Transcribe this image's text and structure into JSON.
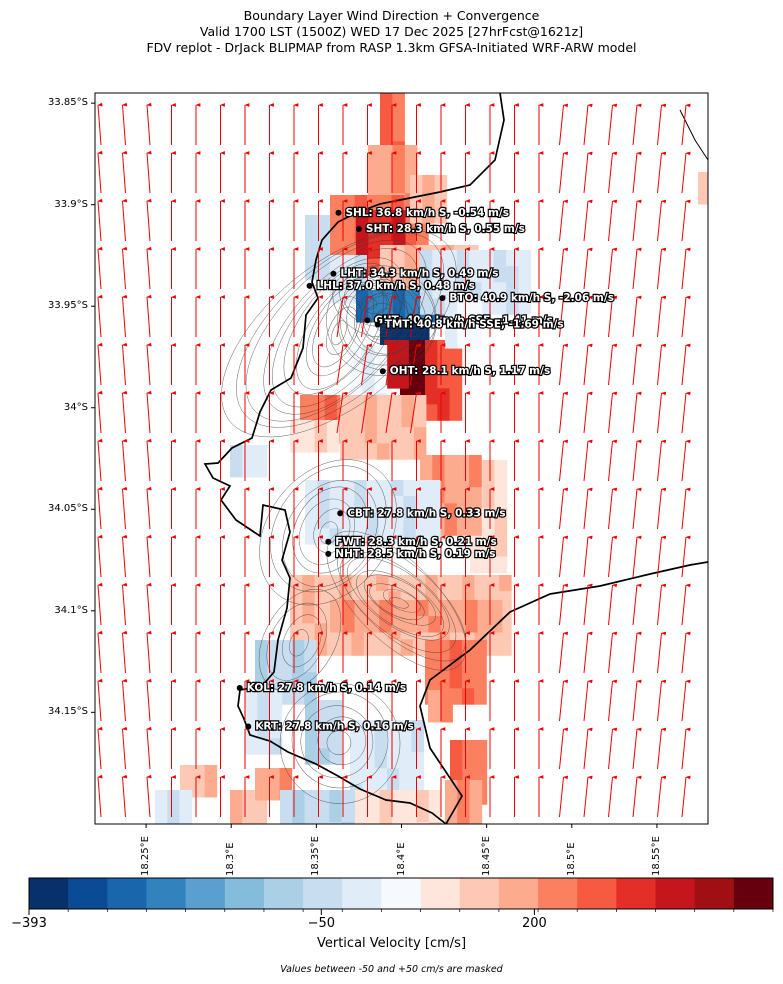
{
  "title": {
    "line1": "Boundary Layer Wind Direction + Convergence",
    "line2": "Valid 1700 LST (1500Z) WED 17 Dec 2025 [27hrFcst@1621z]",
    "line3": "FDV replot - DrJack BLIPMAP from RASP 1.3km GFSA-Initiated WRF-ARW model"
  },
  "axes": {
    "lat_ticks": [
      {
        "value": -33.85,
        "label": "33.85°S"
      },
      {
        "value": -33.9,
        "label": "33.9°S"
      },
      {
        "value": -33.95,
        "label": "33.95°S"
      },
      {
        "value": -34.0,
        "label": "34°S"
      },
      {
        "value": -34.05,
        "label": "34.05°S"
      },
      {
        "value": -34.1,
        "label": "34.1°S"
      },
      {
        "value": -34.15,
        "label": "34.15°S"
      }
    ],
    "lon_ticks": [
      {
        "value": 18.25,
        "label": "18.25°E"
      },
      {
        "value": 18.3,
        "label": "18.3°E"
      },
      {
        "value": 18.35,
        "label": "18.35°E"
      },
      {
        "value": 18.4,
        "label": "18.4°E"
      },
      {
        "value": 18.45,
        "label": "18.45°E"
      },
      {
        "value": 18.5,
        "label": "18.5°E"
      },
      {
        "value": 18.55,
        "label": "18.55°E"
      }
    ],
    "lon_range": [
      18.22,
      18.58
    ],
    "lat_range": [
      -34.205,
      -33.845
    ]
  },
  "stations": [
    {
      "code": "SHL",
      "label": "SHL: 36.8 km/h S, -0.54 m/s",
      "lon": 18.363,
      "lat": -33.904
    },
    {
      "code": "SHT",
      "label": "SHT: 28.3 km/h S, 0.55 m/s",
      "lon": 18.375,
      "lat": -33.912
    },
    {
      "code": "LHT",
      "label": "LHT: 34.3 km/h S, 0.49 m/s",
      "lon": 18.36,
      "lat": -33.934
    },
    {
      "code": "LHL",
      "label": "LHL: 37.0 km/h S, 0.48 m/s",
      "lon": 18.346,
      "lat": -33.94
    },
    {
      "code": "BTO",
      "label": "BTO: 40.9 km/h S, -2.06 m/s",
      "lon": 18.424,
      "lat": -33.946
    },
    {
      "code": "GUT",
      "label": "GUT: 40.0 km/h SSE, -1.41 m/s",
      "lon": 18.38,
      "lat": -33.957
    },
    {
      "code": "TMT",
      "label": "TMT: 40.8 km/h SSE, -1.69 m/s",
      "lon": 18.386,
      "lat": -33.959
    },
    {
      "code": "OHT",
      "label": "OHT: 28.1 km/h S, 1.17 m/s",
      "lon": 18.389,
      "lat": -33.982
    },
    {
      "code": "CBT",
      "label": "CBT: 27.8 km/h S, 0.33 m/s",
      "lon": 18.364,
      "lat": -34.052
    },
    {
      "code": "FWT",
      "label": "FWT: 28.3 km/h S, 0.21 m/s",
      "lon": 18.357,
      "lat": -34.066
    },
    {
      "code": "NHT",
      "label": "NHT: 28.5 km/h S, 0.19 m/s",
      "lon": 18.357,
      "lat": -34.072
    },
    {
      "code": "KOL",
      "label": "KOL: 27.8 km/h S, 0.14 m/s",
      "lon": 18.305,
      "lat": -34.138
    },
    {
      "code": "KRT",
      "label": "KRT: 27.8 km/h S, 0.16 m/s",
      "lon": 18.31,
      "lat": -34.157
    }
  ],
  "colorbar": {
    "title": "Vertical Velocity [cm/s]",
    "tick_labels": [
      "−393",
      "−50",
      "200"
    ],
    "min": -393,
    "max": 480,
    "colors": [
      "#08306b",
      "#0b4a94",
      "#1966ad",
      "#3282be",
      "#5a9fcf",
      "#84bcdb",
      "#abcfe5",
      "#c9ddf0",
      "#e0ecf8",
      "#f6fafe",
      "#fee6dc",
      "#fdc9b4",
      "#fcab8f",
      "#fb8060",
      "#f65a41",
      "#e32f27",
      "#c4161c",
      "#a00f14",
      "#67000d"
    ]
  },
  "note": "Values between -50 and +50 cm/s are masked",
  "colors": {
    "wind_vectors": "#ee0000",
    "coastline": "#000000",
    "contours": "#404040"
  }
}
